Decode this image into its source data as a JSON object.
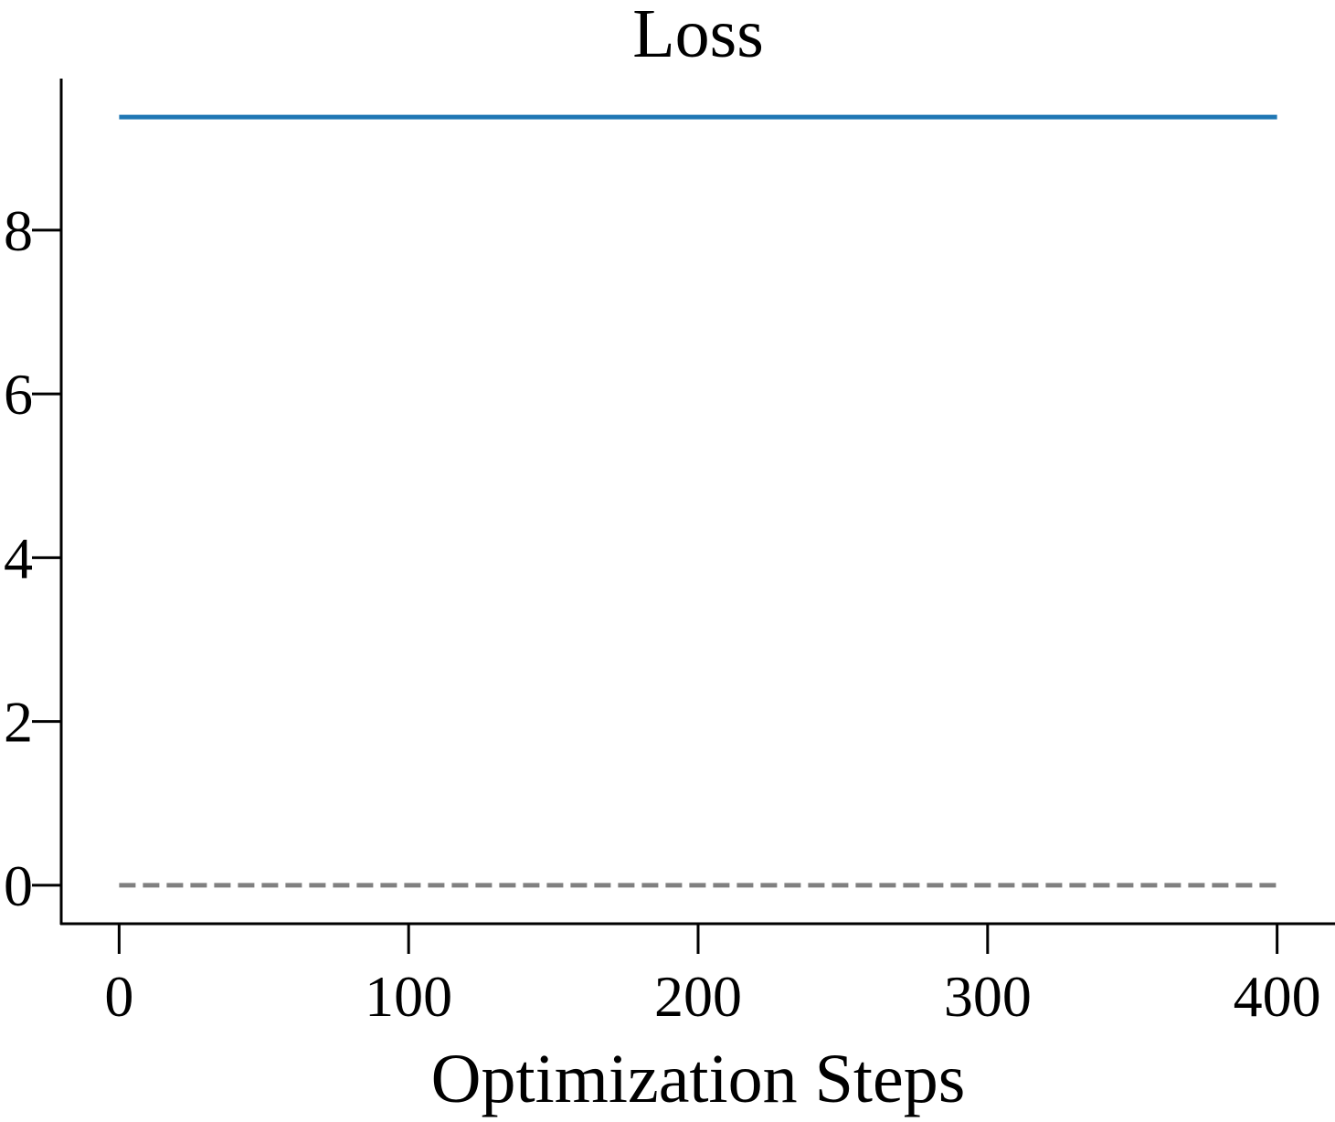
{
  "chart_data": {
    "type": "line",
    "title": "Loss",
    "xlabel": "Optimization Steps",
    "ylabel": "",
    "xlim": [
      -20,
      420
    ],
    "ylim": [
      -0.47,
      9.85
    ],
    "xticks": [
      0,
      100,
      200,
      300,
      400
    ],
    "xtick_labels": [
      "0",
      "100",
      "200",
      "300",
      "400"
    ],
    "yticks": [
      0,
      2,
      4,
      6,
      8
    ],
    "ytick_labels": [
      "0",
      "2",
      "4",
      "6",
      "8"
    ],
    "grid": false,
    "legend": false,
    "series": [
      {
        "color": "#1f77b4",
        "style": "solid",
        "x": [
          0,
          400
        ],
        "y": [
          9.38,
          9.38
        ]
      },
      {
        "color": "#808080",
        "style": "dashed",
        "x": [
          0,
          400
        ],
        "y": [
          0,
          0
        ]
      }
    ]
  }
}
